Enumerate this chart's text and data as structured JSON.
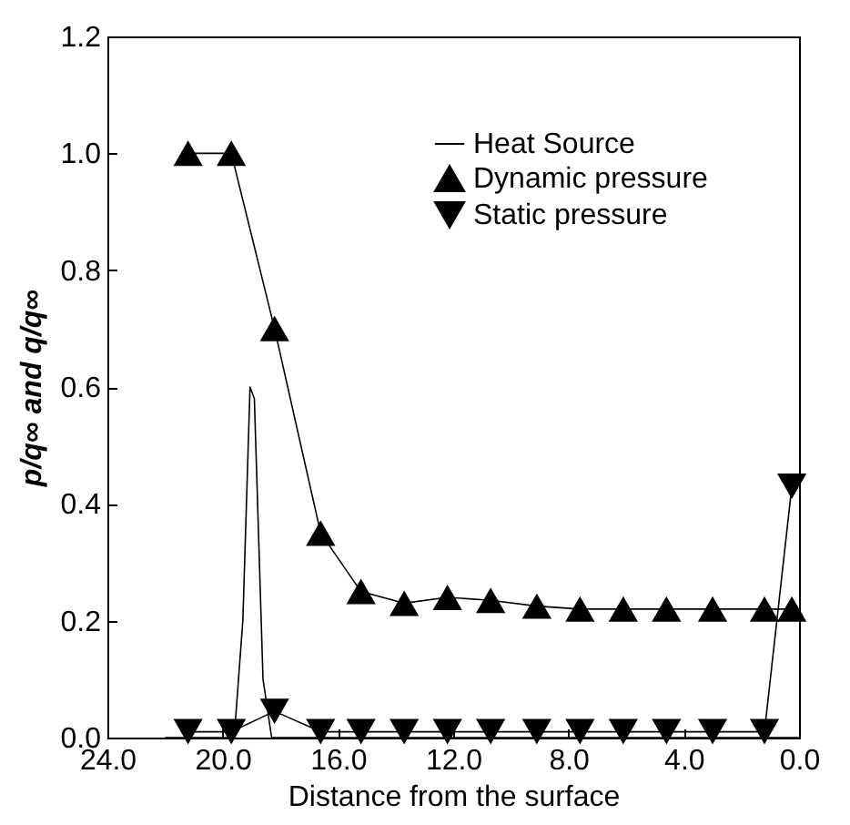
{
  "chart_data": {
    "type": "line",
    "xlabel": "Distance from the surface",
    "ylabel": "p/q∞ and q/q∞",
    "xlim": [
      24,
      0
    ],
    "ylim": [
      0,
      1.2
    ],
    "xticks": [
      {
        "value": 24,
        "label": "24.0"
      },
      {
        "value": 20,
        "label": "20.0"
      },
      {
        "value": 16,
        "label": "16.0"
      },
      {
        "value": 12,
        "label": "12.0"
      },
      {
        "value": 8,
        "label": "8.0"
      },
      {
        "value": 4,
        "label": "4.0"
      },
      {
        "value": 0,
        "label": "0.0"
      }
    ],
    "yticks": [
      {
        "value": 0,
        "label": "0.0"
      },
      {
        "value": 0.2,
        "label": "0.2"
      },
      {
        "value": 0.4,
        "label": "0.4"
      },
      {
        "value": 0.6,
        "label": "0.6"
      },
      {
        "value": 0.8,
        "label": "0.8"
      },
      {
        "value": 1.0,
        "label": "1.0"
      },
      {
        "value": 1.2,
        "label": "1.2"
      }
    ],
    "grid": false,
    "legend": "top right",
    "line_style": "solid",
    "series": [
      {
        "name": "Heat Source",
        "color": "#000000",
        "marker": "none",
        "x": [
          22,
          19.6,
          19.3,
          19.05,
          18.9,
          18.6,
          18.3,
          0
        ],
        "values": [
          0,
          0,
          0.2,
          0.6,
          0.58,
          0.1,
          0,
          0
        ]
      },
      {
        "name": "Dynamic pressure",
        "color": "#000000",
        "marker": "triangle",
        "x": [
          21.2,
          19.7,
          18.2,
          16.6,
          15.2,
          13.7,
          12.2,
          10.7,
          9.1,
          7.6,
          6.1,
          4.6,
          3.0,
          1.2,
          0.25
        ],
        "values": [
          1.0,
          1.0,
          0.7,
          0.35,
          0.25,
          0.23,
          0.24,
          0.235,
          0.225,
          0.22,
          0.22,
          0.22,
          0.22,
          0.22,
          0.22
        ]
      },
      {
        "name": "Static pressure",
        "color": "#000000",
        "marker": "triangle-down",
        "x": [
          21.2,
          19.7,
          18.2,
          16.6,
          15.2,
          13.7,
          12.2,
          10.7,
          9.1,
          7.6,
          6.1,
          4.6,
          3.0,
          1.2,
          0.25
        ],
        "values": [
          0.01,
          0.01,
          0.045,
          0.01,
          0.01,
          0.01,
          0.01,
          0.01,
          0.01,
          0.01,
          0.01,
          0.01,
          0.01,
          0.01,
          0.43
        ]
      }
    ]
  }
}
